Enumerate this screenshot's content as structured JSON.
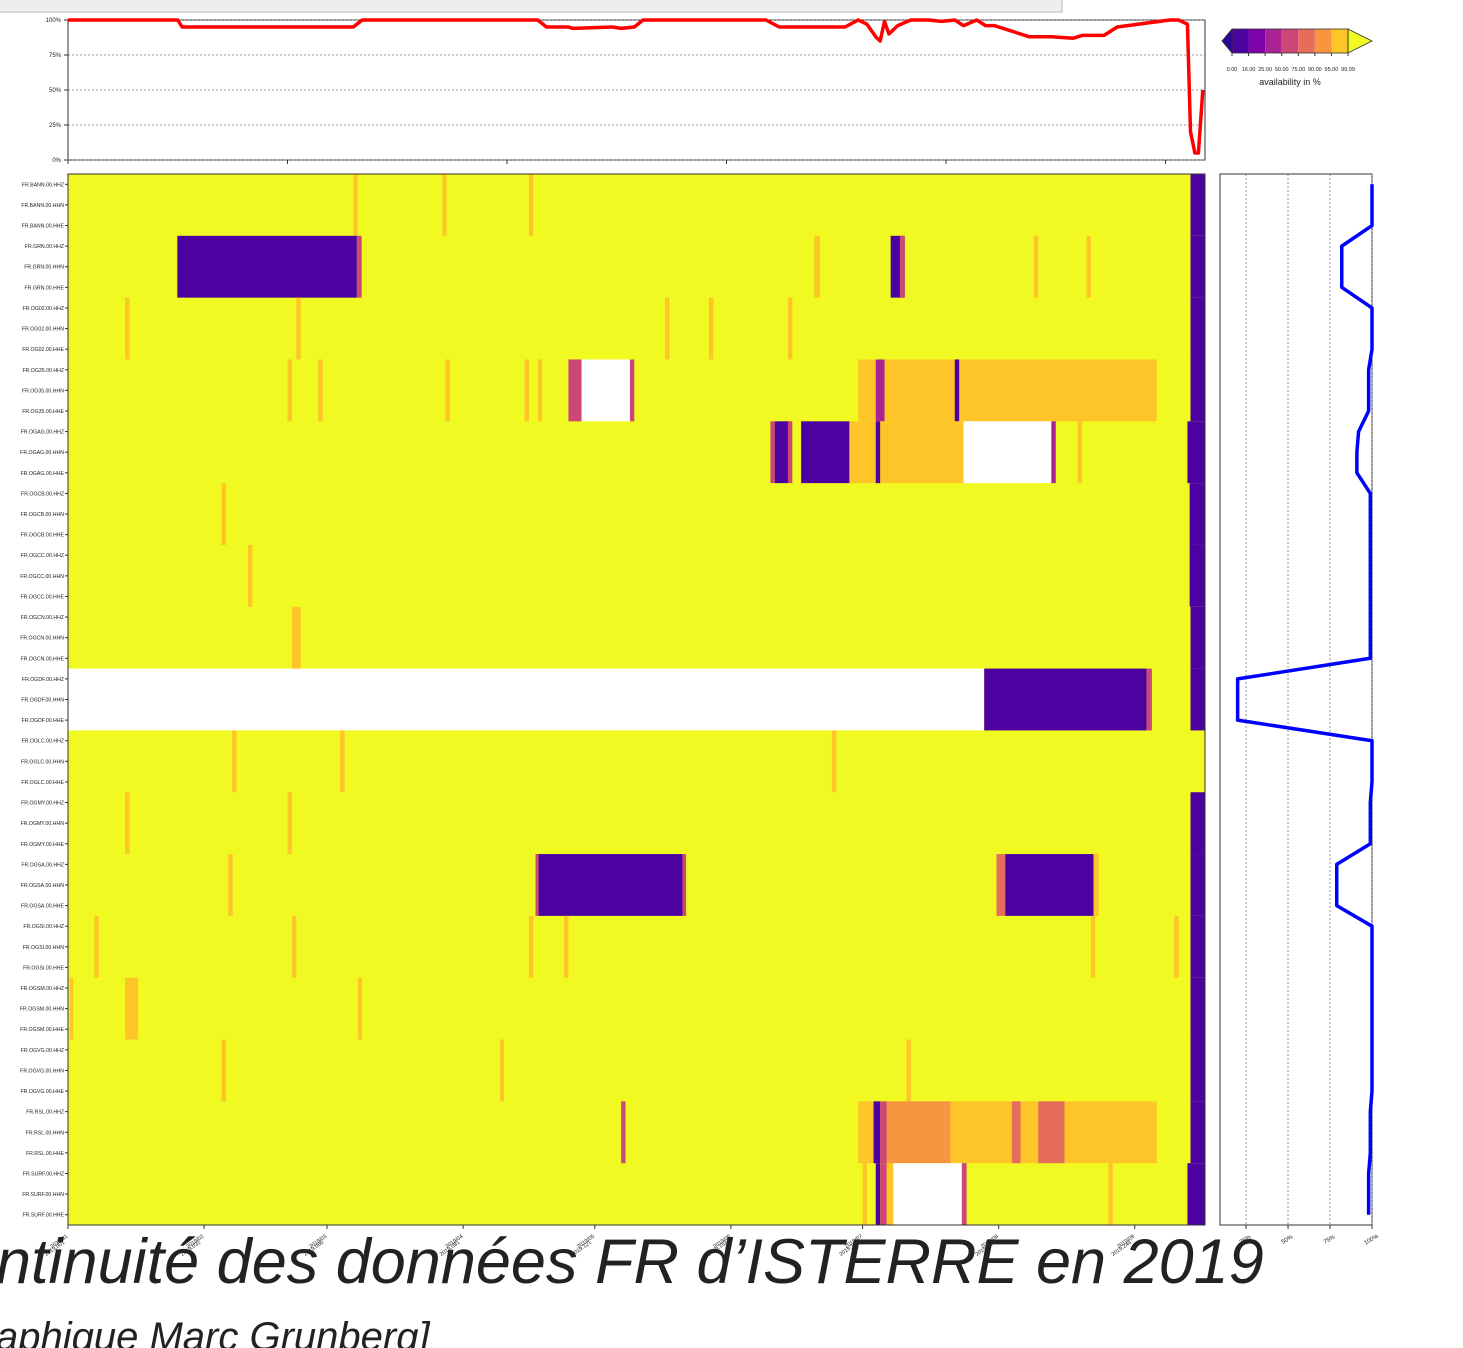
{
  "chart_data": [
    {
      "type": "line",
      "color": "#ff0000",
      "xlim": [
        1,
        260
      ],
      "xticks": [
        1,
        51,
        101,
        151,
        201,
        251
      ],
      "ylim": [
        0,
        100
      ],
      "yticks": [
        {
          "value": 0,
          "label": "0%"
        },
        {
          "value": 25,
          "label": "25%"
        },
        {
          "value": 50,
          "label": "50%"
        },
        {
          "value": 75,
          "label": "75%"
        },
        {
          "value": 100,
          "label": "100%"
        }
      ],
      "grid": true,
      "x": [
        1,
        26,
        27,
        66,
        68,
        108,
        110,
        115,
        116,
        125,
        127,
        130,
        132,
        160,
        163,
        176,
        178,
        181,
        183,
        185,
        186,
        187,
        188,
        190,
        193,
        197,
        200,
        203,
        205,
        208,
        210,
        212,
        220,
        225,
        230,
        232,
        237,
        240,
        252,
        254,
        256,
        256.7,
        257.7,
        258.5,
        259.5
      ],
      "values": [
        100,
        100,
        95,
        95,
        100,
        100,
        95,
        95,
        94,
        95,
        94,
        95,
        100,
        100,
        95,
        95,
        95,
        100,
        97,
        88,
        85,
        99,
        90,
        96,
        100,
        100,
        99,
        100,
        96,
        100,
        96,
        96,
        88,
        88,
        87,
        89,
        89,
        95,
        100,
        100,
        97,
        20,
        5,
        5,
        50
      ]
    },
    {
      "type": "heatmap",
      "xlim": [
        1,
        260
      ],
      "xticks": [
        {
          "value": 1,
          "label": [
            "2019/01",
            "2019.001"
          ]
        },
        {
          "value": 32,
          "label": [
            "2019/02",
            "2019.032"
          ]
        },
        {
          "value": 60,
          "label": [
            "2019/03",
            "2019.060"
          ]
        },
        {
          "value": 91,
          "label": [
            "2019/04",
            "2019.091"
          ]
        },
        {
          "value": 121,
          "label": [
            "2019/05",
            "2019.121"
          ]
        },
        {
          "value": 152,
          "label": [
            "2019/06",
            "2019.152"
          ]
        },
        {
          "value": 182,
          "label": [
            "2019/07",
            "2019.182"
          ]
        },
        {
          "value": 213,
          "label": [
            "2019/08",
            "2019.213"
          ]
        },
        {
          "value": 244,
          "label": [
            "2019/09",
            "2019.244"
          ]
        }
      ],
      "rows": [
        "FR.BANN.00.HHZ",
        "FR.BANN.00.HHN",
        "FR.BANN.00.HHE",
        "FR.GRN.00.HHZ",
        "FR.GRN.00.HHN",
        "FR.GRN.00.HHE",
        "FR.OG02.00.HHZ",
        "FR.OG02.00.HHN",
        "FR.OG02.00.HHE",
        "FR.OG35.00.HHZ",
        "FR.OG35.00.HHN",
        "FR.OG35.00.HHE",
        "FR.OGAG.00.HHZ",
        "FR.OGAG.00.HHN",
        "FR.OGAG.00.HHE",
        "FR.OGCB.00.HHZ",
        "FR.OGCB.00.HHN",
        "FR.OGCB.00.HHE",
        "FR.OGCC.00.HHZ",
        "FR.OGCC.00.HHN",
        "FR.OGCC.00.HHE",
        "FR.OGCN.00.HHZ",
        "FR.OGCN.00.HHN",
        "FR.OGCN.00.HHE",
        "FR.OGDF.00.HHZ",
        "FR.OGDF.00.HHN",
        "FR.OGDF.00.HHE",
        "FR.OGLC.00.HHZ",
        "FR.OGLC.00.HHN",
        "FR.OGLC.00.HHE",
        "FR.OGMY.00.HHZ",
        "FR.OGMY.00.HHN",
        "FR.OGMY.00.HHE",
        "FR.OGSA.00.HHZ",
        "FR.OGSA.00.HHN",
        "FR.OGSA.00.HHE",
        "FR.OGSI.00.HHZ",
        "FR.OGSI.00.HHN",
        "FR.OGSI.00.HHE",
        "FR.OGSM.00.HHZ",
        "FR.OGSM.00.HHN",
        "FR.OGSM.00.HHE",
        "FR.OGVG.00.HHZ",
        "FR.OGVG.00.HHN",
        "FR.OGVG.00.HHE",
        "FR.RSL.00.HHZ",
        "FR.RSL.00.HHN",
        "FR.RSL.00.HHE",
        "FR.SURF.00.HHZ",
        "FR.SURF.00.HHN",
        "FR.SURF.00.HHE"
      ],
      "stations": [
        {
          "segments": [
            [
              66,
              67,
              97
            ],
            [
              86.3,
              87.2,
              97
            ],
            [
              106,
              107,
              97
            ],
            [
              256.7,
              260,
              0
            ]
          ]
        },
        {
          "segments": [
            [
              25.9,
              66.8,
              5
            ],
            [
              66.8,
              67.9,
              60
            ],
            [
              171,
              172.3,
              97
            ],
            [
              188.4,
              191.6,
              5
            ],
            [
              190.5,
              191.6,
              60
            ],
            [
              221,
              222,
              97
            ],
            [
              233,
              234,
              97
            ],
            [
              256.7,
              260,
              0
            ]
          ]
        },
        {
          "segments": [
            [
              14,
              15,
              97
            ],
            [
              53,
              54,
              97
            ],
            [
              137,
              138,
              97
            ],
            [
              147,
              148,
              97
            ],
            [
              165,
              166,
              97
            ],
            [
              256.7,
              260,
              0
            ]
          ]
        },
        {
          "segments": [
            [
              51,
              52,
              97
            ],
            [
              58,
              59,
              97
            ],
            [
              87,
              88,
              97
            ],
            [
              105,
              106,
              97
            ],
            [
              108,
              109,
              97
            ],
            [
              115,
              118,
              60
            ],
            [
              118,
              129,
              null
            ],
            [
              129,
              130,
              60
            ],
            [
              181,
              249,
              97
            ],
            [
              185,
              187,
              40
            ],
            [
              203,
              204,
              5
            ],
            [
              256.7,
              260,
              0
            ]
          ]
        },
        {
          "segments": [
            [
              161,
              162,
              60
            ],
            [
              162,
              165,
              5
            ],
            [
              165,
              166,
              60
            ],
            [
              168,
              179,
              5
            ],
            [
              179,
              205,
              97
            ],
            [
              185,
              186,
              5
            ],
            [
              205,
              225,
              null
            ],
            [
              225,
              226,
              40
            ],
            [
              231,
              232,
              97
            ],
            [
              256,
              260,
              0
            ]
          ]
        },
        {
          "segments": [
            [
              36,
              37,
              97
            ],
            [
              256.5,
              260,
              0
            ]
          ]
        },
        {
          "segments": [
            [
              42,
              43,
              97
            ],
            [
              256.5,
              260,
              0
            ]
          ]
        },
        {
          "segments": [
            [
              52,
              54,
              97
            ],
            [
              256.7,
              260,
              0
            ]
          ]
        },
        {
          "segments": [
            [
              1,
              209.7,
              null
            ],
            [
              209.7,
              246.7,
              5
            ],
            [
              246.7,
              247.9,
              60
            ],
            [
              256.7,
              260,
              0
            ]
          ]
        },
        {
          "segments": [
            [
              38.4,
              39.4,
              97
            ],
            [
              63,
              64,
              97
            ],
            [
              175,
              176,
              97
            ]
          ]
        },
        {
          "segments": [
            [
              14,
              15,
              97
            ],
            [
              51,
              52,
              97
            ],
            [
              256.7,
              260,
              0
            ]
          ]
        },
        {
          "segments": [
            [
              37.5,
              38.5,
              97
            ],
            [
              107.5,
              108.2,
              60
            ],
            [
              108.2,
              141,
              5
            ],
            [
              141,
              141.8,
              60
            ],
            [
              212.5,
              214.5,
              85
            ],
            [
              214.5,
              234.6,
              5
            ],
            [
              234.6,
              235.8,
              97
            ],
            [
              256.7,
              260,
              0
            ]
          ]
        },
        {
          "segments": [
            [
              7,
              8,
              97
            ],
            [
              52,
              53,
              97
            ],
            [
              106,
              107,
              97
            ],
            [
              114,
              115,
              97
            ],
            [
              234,
              235,
              97
            ],
            [
              253,
              254,
              97
            ],
            [
              256.7,
              260,
              0
            ]
          ]
        },
        {
          "segments": [
            [
              1.4,
              2.2,
              97
            ],
            [
              14,
              17,
              97
            ],
            [
              67,
              68,
              97
            ],
            [
              256.7,
              260,
              0
            ]
          ]
        },
        {
          "segments": [
            [
              36,
              37,
              97
            ],
            [
              99.4,
              100.3,
              97
            ],
            [
              192,
              193,
              97
            ],
            [
              256.7,
              260,
              0
            ]
          ]
        },
        {
          "segments": [
            [
              127,
              128,
              60
            ],
            [
              181,
              249,
              97
            ],
            [
              184.5,
              186,
              5
            ],
            [
              186,
              187.5,
              60
            ],
            [
              187.5,
              202,
              93
            ],
            [
              216,
              218,
              80
            ],
            [
              222,
              228,
              85
            ],
            [
              256.7,
              260,
              0
            ]
          ]
        },
        {
          "segments": [
            [
              182,
              183,
              97
            ],
            [
              185,
              186,
              5
            ],
            [
              186,
              187.5,
              60
            ],
            [
              187.5,
              189,
              97
            ],
            [
              189,
              204.6,
              null
            ],
            [
              204.6,
              205.7,
              60
            ],
            [
              238,
              239,
              97
            ],
            [
              256,
              260,
              0
            ]
          ]
        }
      ],
      "colorbar": {
        "label": "availability in %",
        "under": "#2c0594",
        "over": "#f0f921",
        "bounds": [
          {
            "value": 0,
            "label": "0.00"
          },
          {
            "value": 16,
            "label": "16.00"
          },
          {
            "value": 25,
            "label": "25.00"
          },
          {
            "value": 50,
            "label": "50.00"
          },
          {
            "value": 75,
            "label": "75.00"
          },
          {
            "value": 90,
            "label": "90.00"
          },
          {
            "value": 95,
            "label": "95.00"
          },
          {
            "value": 99.99,
            "label": "99.99"
          }
        ],
        "colors": [
          "#4c02a1",
          "#7e03a8",
          "#a92395",
          "#cc4778",
          "#e66c5c",
          "#f89540",
          "#fdc527"
        ]
      }
    },
    {
      "type": "line",
      "orientation": "horizontal",
      "color": "#0000ff",
      "xlim": [
        9.5,
        100
      ],
      "xticks": [
        {
          "value": 25,
          "label": "25%"
        },
        {
          "value": 50,
          "label": "50%"
        },
        {
          "value": 75,
          "label": "75%"
        },
        {
          "value": 100,
          "label": "100%"
        }
      ],
      "grid": true,
      "values": [
        100,
        100,
        100,
        82,
        82,
        82,
        100,
        100,
        100,
        98,
        98,
        98,
        92,
        91,
        91,
        99,
        99,
        99,
        99,
        99,
        99,
        99,
        99,
        99,
        20,
        20,
        20,
        100,
        100,
        100,
        99,
        99,
        99,
        79,
        79,
        79,
        100,
        100,
        100,
        100,
        100,
        100,
        100,
        100,
        100,
        99,
        99,
        99,
        98,
        98,
        98
      ]
    }
  ],
  "caption": {
    "title": "ntinuité des données FR d’ISTERRE en 2019",
    "subtitle": "aphique Marc Grunberg]"
  }
}
